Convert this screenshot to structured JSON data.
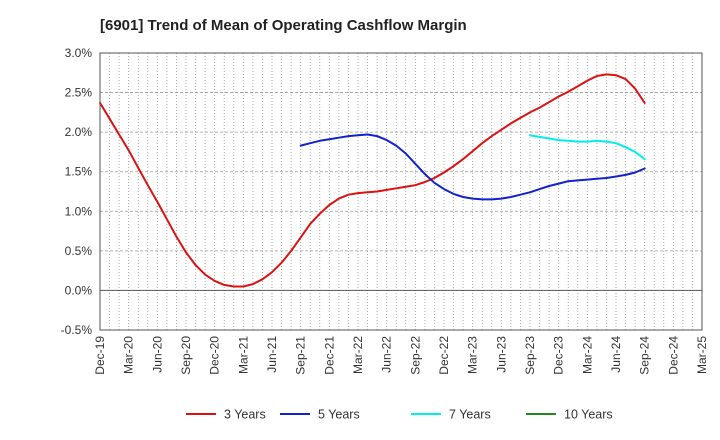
{
  "chart_data": {
    "type": "line",
    "title": "[6901]  Trend of Mean of Operating Cashflow Margin",
    "xlabel": "",
    "ylabel": "",
    "x_ticks": [
      "Dec-19",
      "Mar-20",
      "Jun-20",
      "Sep-20",
      "Dec-20",
      "Mar-21",
      "Jun-21",
      "Sep-21",
      "Dec-21",
      "Mar-22",
      "Jun-22",
      "Sep-22",
      "Dec-22",
      "Mar-23",
      "Jun-23",
      "Sep-23",
      "Dec-23",
      "Mar-24",
      "Jun-24",
      "Sep-24",
      "Dec-24",
      "Mar-25"
    ],
    "y_ticks": [
      "-0.5%",
      "0.0%",
      "0.5%",
      "1.0%",
      "1.5%",
      "2.0%",
      "2.5%",
      "3.0%"
    ],
    "ylim": [
      -0.5,
      3.0
    ],
    "y_unit": "%",
    "grid": true,
    "legend_position": "bottom",
    "series": [
      {
        "name": "3 Years",
        "color": "#dd1111",
        "x": [
          "Dec-19",
          "Jan-20",
          "Feb-20",
          "Mar-20",
          "Apr-20",
          "May-20",
          "Jun-20",
          "Jul-20",
          "Aug-20",
          "Sep-20",
          "Oct-20",
          "Nov-20",
          "Dec-20",
          "Jan-21",
          "Feb-21",
          "Mar-21",
          "Apr-21",
          "May-21",
          "Jun-21",
          "Jul-21",
          "Aug-21",
          "Sep-21",
          "Oct-21",
          "Nov-21",
          "Dec-21",
          "Jan-22",
          "Feb-22",
          "Mar-22",
          "Apr-22",
          "May-22",
          "Jun-22",
          "Jul-22",
          "Aug-22",
          "Sep-22",
          "Oct-22",
          "Nov-22",
          "Dec-22",
          "Jan-23",
          "Feb-23",
          "Mar-23",
          "Apr-23",
          "May-23",
          "Jun-23",
          "Jul-23",
          "Aug-23",
          "Sep-23",
          "Oct-23",
          "Nov-23",
          "Dec-23",
          "Jan-24",
          "Feb-24",
          "Mar-24",
          "Apr-24",
          "May-24",
          "Jun-24",
          "Jul-24",
          "Aug-24",
          "Sep-24"
        ],
        "values": [
          2.37,
          2.17,
          1.97,
          1.77,
          1.55,
          1.33,
          1.12,
          0.9,
          0.68,
          0.48,
          0.32,
          0.2,
          0.12,
          0.07,
          0.05,
          0.05,
          0.08,
          0.14,
          0.23,
          0.35,
          0.5,
          0.67,
          0.84,
          0.97,
          1.08,
          1.16,
          1.21,
          1.23,
          1.24,
          1.25,
          1.27,
          1.29,
          1.31,
          1.33,
          1.37,
          1.42,
          1.49,
          1.57,
          1.66,
          1.76,
          1.86,
          1.95,
          2.03,
          2.11,
          2.18,
          2.25,
          2.31,
          2.38,
          2.45,
          2.51,
          2.58,
          2.65,
          2.71,
          2.73,
          2.72,
          2.67,
          2.55,
          2.37
        ]
      },
      {
        "name": "5 Years",
        "color": "#1122cc",
        "x": [
          "Sep-21",
          "Oct-21",
          "Nov-21",
          "Dec-21",
          "Jan-22",
          "Feb-22",
          "Mar-22",
          "Apr-22",
          "May-22",
          "Jun-22",
          "Jul-22",
          "Aug-22",
          "Sep-22",
          "Oct-22",
          "Nov-22",
          "Dec-22",
          "Jan-23",
          "Feb-23",
          "Mar-23",
          "Apr-23",
          "May-23",
          "Jun-23",
          "Jul-23",
          "Aug-23",
          "Sep-23",
          "Oct-23",
          "Nov-23",
          "Dec-23",
          "Jan-24",
          "Feb-24",
          "Mar-24",
          "Apr-24",
          "May-24",
          "Jun-24",
          "Jul-24",
          "Aug-24",
          "Sep-24"
        ],
        "values": [
          1.83,
          1.86,
          1.89,
          1.91,
          1.93,
          1.95,
          1.96,
          1.97,
          1.95,
          1.9,
          1.83,
          1.73,
          1.6,
          1.47,
          1.36,
          1.28,
          1.22,
          1.18,
          1.16,
          1.15,
          1.15,
          1.16,
          1.18,
          1.21,
          1.24,
          1.28,
          1.32,
          1.35,
          1.38,
          1.39,
          1.4,
          1.41,
          1.42,
          1.44,
          1.46,
          1.49,
          1.54
        ]
      },
      {
        "name": "7 Years",
        "color": "#00eeee",
        "x": [
          "Sep-23",
          "Oct-23",
          "Nov-23",
          "Dec-23",
          "Jan-24",
          "Feb-24",
          "Mar-24",
          "Apr-24",
          "May-24",
          "Jun-24",
          "Jul-24",
          "Aug-24",
          "Sep-24"
        ],
        "values": [
          1.96,
          1.94,
          1.92,
          1.9,
          1.89,
          1.88,
          1.88,
          1.89,
          1.88,
          1.86,
          1.81,
          1.75,
          1.66
        ]
      },
      {
        "name": "10 Years",
        "color": "#228822",
        "x": [],
        "values": []
      }
    ]
  }
}
